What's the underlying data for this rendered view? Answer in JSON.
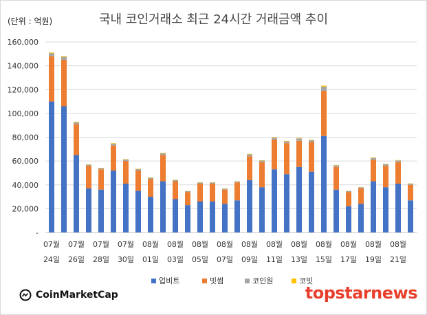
{
  "chart_data": {
    "type": "bar",
    "stacked": true,
    "title": "국내 코인거래소 최근 24시간 거래금액 추이",
    "unit_label": "(단위 : 억원)",
    "ylim": [
      0,
      160000
    ],
    "yticks": [
      "-",
      "20,000",
      "40,000",
      "60,000",
      "80,000",
      "100,000",
      "120,000",
      "140,000",
      "160,000"
    ],
    "grid": true,
    "legend_position": "bottom",
    "categories": [
      "07-24",
      "07-25",
      "07-26",
      "07-27",
      "07-28",
      "07-29",
      "07-30",
      "07-31",
      "08-01",
      "08-02",
      "08-03",
      "08-04",
      "08-05",
      "08-06",
      "08-07",
      "08-08",
      "08-09",
      "08-10",
      "08-11",
      "08-12",
      "08-13",
      "08-14",
      "08-15",
      "08-16",
      "08-17",
      "08-18",
      "08-19",
      "08-20",
      "08-21",
      "08-22"
    ],
    "tick_labels": [
      {
        "month": "07월",
        "day": "24일"
      },
      {
        "month": "07월",
        "day": "26일"
      },
      {
        "month": "07월",
        "day": "28일"
      },
      {
        "month": "07월",
        "day": "30일"
      },
      {
        "month": "08월",
        "day": "01일"
      },
      {
        "month": "08월",
        "day": "03일"
      },
      {
        "month": "08월",
        "day": "05일"
      },
      {
        "month": "08월",
        "day": "07일"
      },
      {
        "month": "08월",
        "day": "09일"
      },
      {
        "month": "08월",
        "day": "11일"
      },
      {
        "month": "08월",
        "day": "13일"
      },
      {
        "month": "08월",
        "day": "15일"
      },
      {
        "month": "08월",
        "day": "17일"
      },
      {
        "month": "08월",
        "day": "19일"
      },
      {
        "month": "08월",
        "day": "21일"
      }
    ],
    "series": [
      {
        "name": "업비트",
        "color": "#4472c4",
        "values": [
          110000,
          106000,
          65000,
          37000,
          36000,
          52000,
          41000,
          35000,
          30000,
          43000,
          28000,
          23000,
          26000,
          26000,
          24000,
          27000,
          44000,
          38000,
          53000,
          49000,
          55000,
          51000,
          81000,
          36000,
          22000,
          24000,
          43000,
          38000,
          41000,
          27000
        ]
      },
      {
        "name": "빗썸",
        "color": "#ed7d31",
        "values": [
          38000,
          39000,
          26000,
          19000,
          17000,
          21000,
          19000,
          17000,
          15000,
          22000,
          15000,
          11000,
          15000,
          15000,
          12000,
          15000,
          20000,
          21000,
          25000,
          26000,
          22000,
          25000,
          38000,
          19000,
          12000,
          13000,
          18000,
          18000,
          18000,
          13000
        ]
      },
      {
        "name": "코인원",
        "color": "#a5a5a5",
        "values": [
          2500,
          2500,
          1600,
          1000,
          1000,
          1600,
          1300,
          1200,
          1000,
          1500,
          1000,
          800,
          900,
          900,
          800,
          900,
          1600,
          1400,
          1600,
          1500,
          2000,
          1500,
          3500,
          1400,
          800,
          900,
          1600,
          1400,
          1500,
          1000
        ]
      },
      {
        "name": "코빗",
        "color": "#ffc000",
        "values": [
          600,
          600,
          400,
          300,
          300,
          400,
          300,
          300,
          300,
          400,
          300,
          200,
          200,
          200,
          200,
          200,
          400,
          300,
          400,
          400,
          400,
          400,
          800,
          300,
          200,
          200,
          400,
          300,
          300,
          200
        ]
      }
    ]
  },
  "logos": {
    "left_text": "CoinMarketCap",
    "right_text": "topstarnews",
    "left_icon": "coinmarketcap-logo-icon",
    "right_color": "#e83e2c"
  }
}
